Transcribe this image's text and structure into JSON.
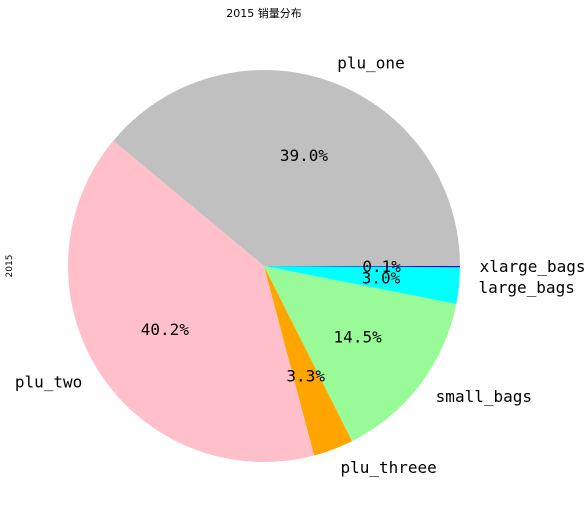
{
  "chart_data": {
    "type": "pie",
    "title": "2015 销量分布",
    "ylabel": "2015",
    "slices": [
      {
        "label": "plu_one",
        "value": 39.0,
        "pct_label": "39.0%",
        "color": "#c0c0c0"
      },
      {
        "label": "plu_two",
        "value": 40.2,
        "pct_label": "40.2%",
        "color": "#ffc0cb"
      },
      {
        "label": "plu_threee",
        "value": 3.3,
        "pct_label": "3.3%",
        "color": "#ffa500"
      },
      {
        "label": "small_bags",
        "value": 14.5,
        "pct_label": "14.5%",
        "color": "#98fb98"
      },
      {
        "label": "large_bags",
        "value": 3.0,
        "pct_label": "3.0%",
        "color": "#00ffff"
      },
      {
        "label": "xlarge_bags",
        "value": 0.1,
        "pct_label": "0.1%",
        "color": "#0000ff"
      }
    ]
  }
}
